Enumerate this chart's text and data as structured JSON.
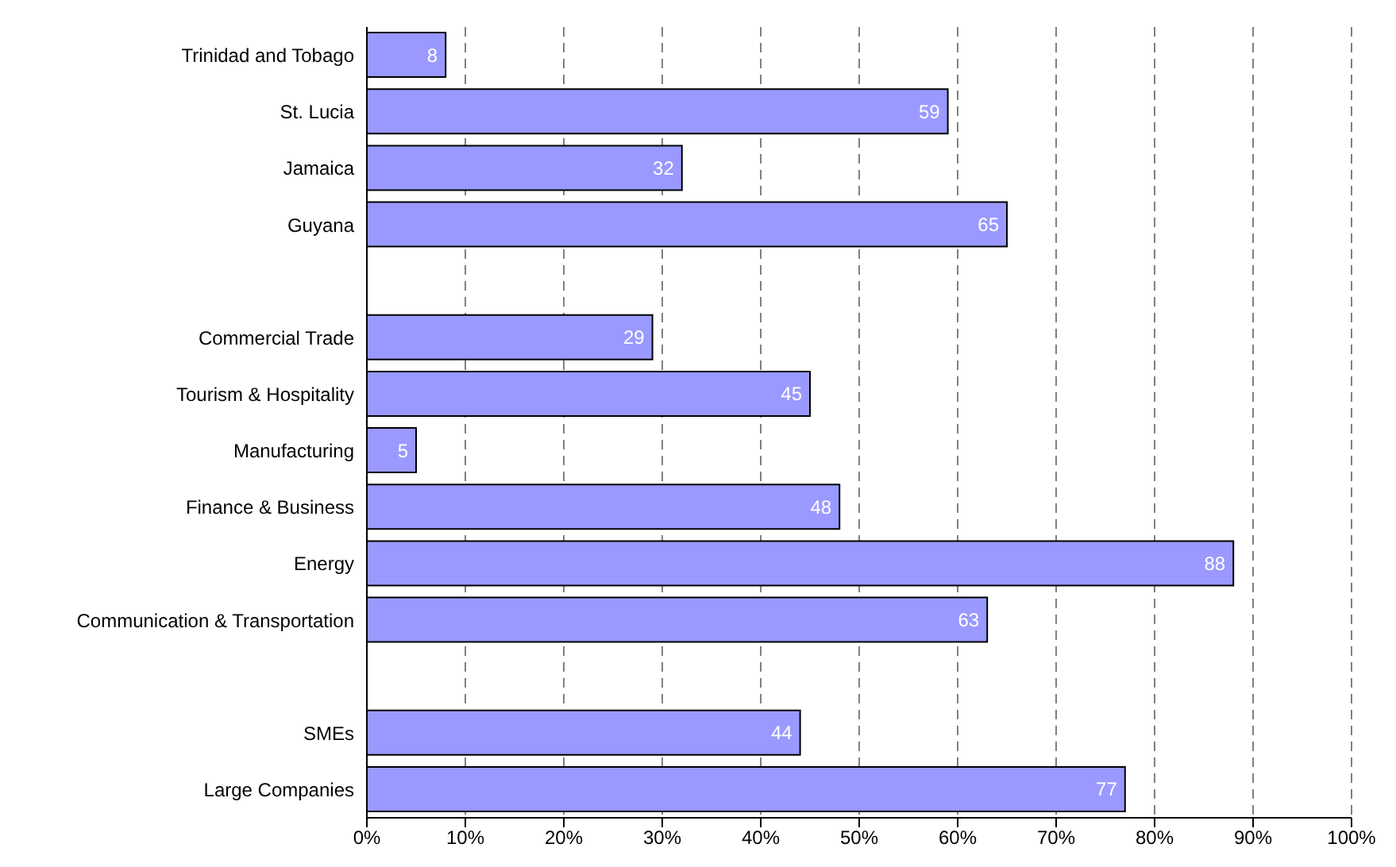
{
  "chart_data": {
    "type": "bar",
    "orientation": "horizontal",
    "categories": [
      "Trinidad and Tobago",
      "St. Lucia",
      "Jamaica",
      "Guyana",
      null,
      "Commercial Trade",
      "Tourism & Hospitality",
      "Manufacturing",
      "Finance & Business",
      "Energy",
      "Communication & Transportation",
      null,
      "SMEs",
      "Large Companies"
    ],
    "values": [
      8,
      59,
      32,
      65,
      null,
      29,
      45,
      5,
      48,
      88,
      63,
      null,
      44,
      77
    ],
    "color": "#9999ff",
    "xlim": [
      0,
      100
    ],
    "xticks": [
      {
        "value": 0,
        "label": "0%"
      },
      {
        "value": 10,
        "label": "10%"
      },
      {
        "value": 20,
        "label": "20%"
      },
      {
        "value": 30,
        "label": "30%"
      },
      {
        "value": 40,
        "label": "40%"
      },
      {
        "value": 50,
        "label": "50%"
      },
      {
        "value": 60,
        "label": "60%"
      },
      {
        "value": 70,
        "label": "70%"
      },
      {
        "value": 80,
        "label": "80%"
      },
      {
        "value": 90,
        "label": "90%"
      },
      {
        "value": 100,
        "label": "100%"
      }
    ],
    "grid": "x",
    "line_style": "dashed",
    "data_labels": true,
    "legend": false
  }
}
